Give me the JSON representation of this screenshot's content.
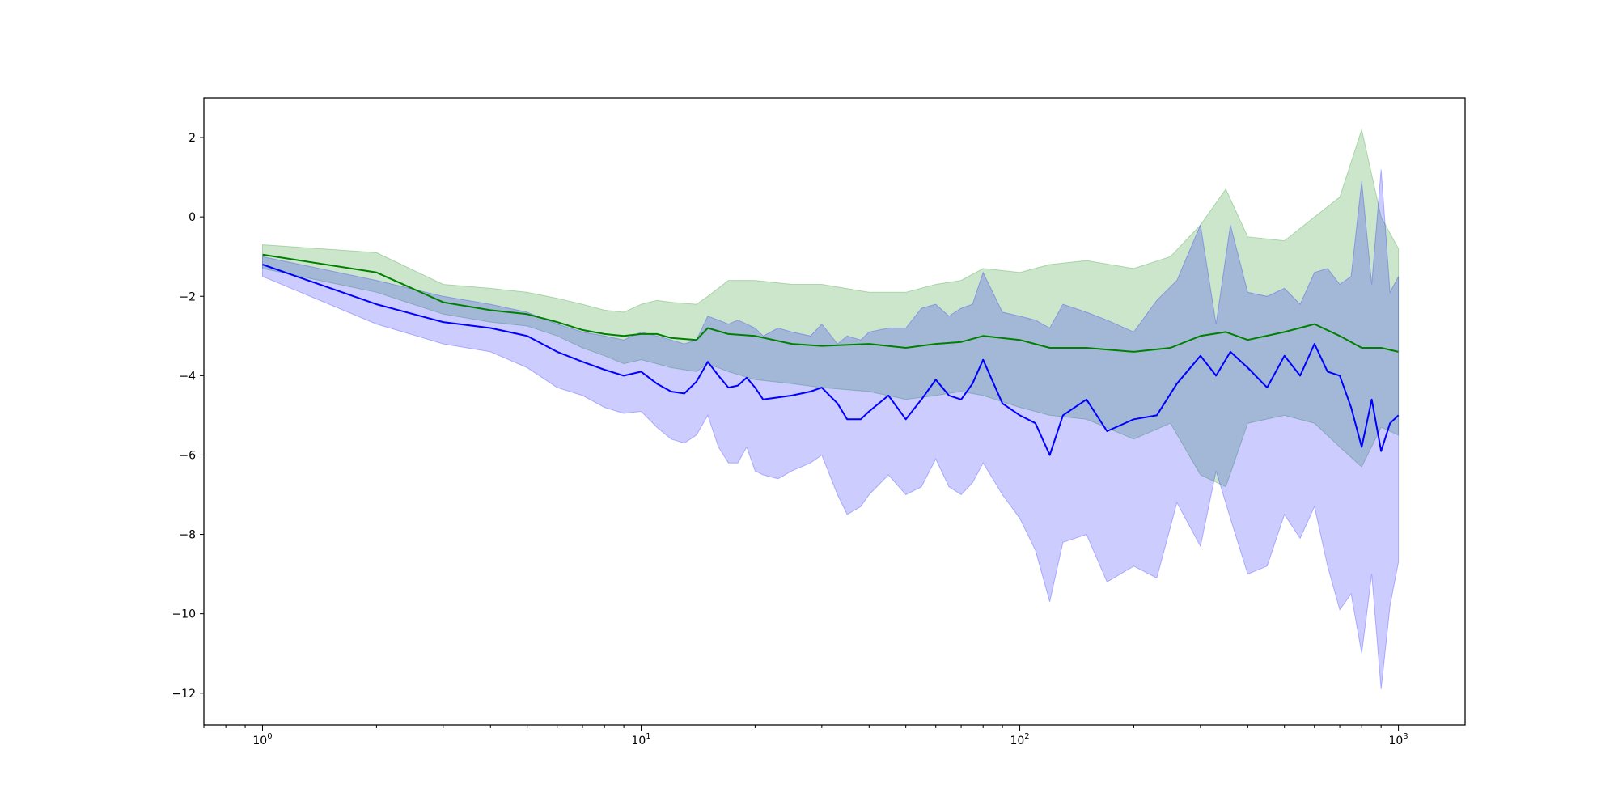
{
  "chart_data": {
    "type": "line",
    "title": "",
    "xlabel": "",
    "ylabel": "",
    "xscale": "log",
    "xlim": [
      0.7,
      1500
    ],
    "ylim": [
      -12.8,
      3.0
    ],
    "grid": false,
    "legend": "none",
    "x_ticks": [
      {
        "value": 1,
        "base": "10",
        "exp": "0"
      },
      {
        "value": 10,
        "base": "10",
        "exp": "1"
      },
      {
        "value": 100,
        "base": "10",
        "exp": "2"
      },
      {
        "value": 1000,
        "base": "10",
        "exp": "3"
      }
    ],
    "y_ticks": [
      {
        "value": 2,
        "label": "2"
      },
      {
        "value": 0,
        "label": "0"
      },
      {
        "value": -2,
        "label": "−2"
      },
      {
        "value": -4,
        "label": "−4"
      },
      {
        "value": -6,
        "label": "−6"
      },
      {
        "value": -8,
        "label": "−8"
      },
      {
        "value": -10,
        "label": "−10"
      },
      {
        "value": -12,
        "label": "−12"
      }
    ],
    "series": [
      {
        "color": "#008000",
        "band_alpha": 0.2,
        "x": [
          1,
          2,
          3,
          4,
          5,
          6,
          7,
          8,
          9,
          10,
          11,
          12,
          14,
          15,
          17,
          20,
          25,
          30,
          40,
          50,
          60,
          70,
          80,
          100,
          120,
          150,
          200,
          250,
          300,
          350,
          400,
          500,
          600,
          700,
          800,
          900,
          1000
        ],
        "mean": [
          -0.95,
          -1.4,
          -2.15,
          -2.35,
          -2.45,
          -2.65,
          -2.85,
          -2.95,
          -3.0,
          -2.95,
          -2.95,
          -3.05,
          -3.1,
          -2.8,
          -2.95,
          -3.0,
          -3.2,
          -3.25,
          -3.2,
          -3.3,
          -3.2,
          -3.15,
          -3.0,
          -3.1,
          -3.3,
          -3.3,
          -3.4,
          -3.3,
          -3.0,
          -2.9,
          -3.1,
          -2.9,
          -2.7,
          -3.0,
          -3.3,
          -3.3,
          -3.4
        ],
        "upper": [
          -0.7,
          -0.9,
          -1.7,
          -1.8,
          -1.9,
          -2.05,
          -2.2,
          -2.35,
          -2.4,
          -2.2,
          -2.1,
          -2.15,
          -2.2,
          -2.0,
          -1.6,
          -1.6,
          -1.7,
          -1.7,
          -1.9,
          -1.9,
          -1.7,
          -1.6,
          -1.3,
          -1.4,
          -1.2,
          -1.1,
          -1.3,
          -1.0,
          -0.2,
          0.7,
          -0.5,
          -0.6,
          0.0,
          0.5,
          2.2,
          0.0,
          -0.8
        ],
        "lower": [
          -1.3,
          -1.9,
          -2.45,
          -2.65,
          -2.75,
          -3.0,
          -3.3,
          -3.5,
          -3.7,
          -3.6,
          -3.7,
          -3.8,
          -3.9,
          -3.7,
          -3.9,
          -4.1,
          -4.2,
          -4.3,
          -4.4,
          -4.6,
          -4.5,
          -4.4,
          -4.5,
          -4.8,
          -5.0,
          -5.1,
          -5.6,
          -5.2,
          -6.5,
          -6.8,
          -5.2,
          -5.0,
          -5.2,
          -5.8,
          -6.3,
          -5.3,
          -5.5
        ]
      },
      {
        "color": "#0000ff",
        "band_alpha": 0.2,
        "x": [
          1,
          2,
          3,
          4,
          5,
          6,
          7,
          8,
          9,
          10,
          11,
          12,
          13,
          14,
          15,
          16,
          17,
          18,
          19,
          20,
          21,
          23,
          25,
          28,
          30,
          33,
          35,
          38,
          40,
          45,
          50,
          55,
          60,
          65,
          70,
          75,
          80,
          90,
          100,
          110,
          120,
          130,
          150,
          170,
          200,
          230,
          260,
          300,
          330,
          360,
          400,
          450,
          500,
          550,
          600,
          650,
          700,
          750,
          800,
          850,
          900,
          950,
          1000
        ],
        "mean": [
          -1.2,
          -2.2,
          -2.65,
          -2.8,
          -3.0,
          -3.4,
          -3.65,
          -3.85,
          -4.0,
          -3.9,
          -4.2,
          -4.4,
          -4.45,
          -4.15,
          -3.65,
          -4.0,
          -4.3,
          -4.25,
          -4.05,
          -4.3,
          -4.6,
          -4.55,
          -4.5,
          -4.4,
          -4.3,
          -4.7,
          -5.1,
          -5.1,
          -4.9,
          -4.5,
          -5.1,
          -4.6,
          -4.1,
          -4.5,
          -4.6,
          -4.2,
          -3.6,
          -4.7,
          -5.0,
          -5.2,
          -6.0,
          -5.0,
          -4.6,
          -5.4,
          -5.1,
          -5.0,
          -4.2,
          -3.5,
          -4.0,
          -3.4,
          -3.8,
          -4.3,
          -3.5,
          -4.0,
          -3.2,
          -3.9,
          -4.0,
          -4.8,
          -5.8,
          -4.6,
          -5.9,
          -5.2,
          -5.0
        ],
        "upper": [
          -1.0,
          -1.6,
          -2.0,
          -2.2,
          -2.4,
          -2.7,
          -2.9,
          -3.0,
          -3.1,
          -2.9,
          -3.0,
          -3.1,
          -3.2,
          -3.1,
          -2.5,
          -2.6,
          -2.7,
          -2.6,
          -2.7,
          -2.8,
          -3.0,
          -2.8,
          -2.9,
          -3.0,
          -2.7,
          -3.2,
          -3.0,
          -3.1,
          -2.9,
          -2.8,
          -2.8,
          -2.3,
          -2.2,
          -2.5,
          -2.3,
          -2.2,
          -1.4,
          -2.4,
          -2.5,
          -2.6,
          -2.8,
          -2.2,
          -2.4,
          -2.6,
          -2.9,
          -2.1,
          -1.6,
          -0.2,
          -2.7,
          -0.2,
          -1.9,
          -2.0,
          -1.8,
          -2.2,
          -1.4,
          -1.3,
          -1.7,
          -1.5,
          0.9,
          -1.7,
          1.2,
          -1.9,
          -1.5
        ],
        "lower": [
          -1.5,
          -2.7,
          -3.2,
          -3.4,
          -3.8,
          -4.3,
          -4.5,
          -4.8,
          -4.95,
          -4.9,
          -5.3,
          -5.6,
          -5.7,
          -5.5,
          -5.0,
          -5.8,
          -6.2,
          -6.2,
          -5.8,
          -6.4,
          -6.5,
          -6.6,
          -6.4,
          -6.2,
          -6.0,
          -7.0,
          -7.5,
          -7.3,
          -7.0,
          -6.5,
          -7.0,
          -6.8,
          -6.1,
          -6.8,
          -7.0,
          -6.7,
          -6.2,
          -7.0,
          -7.6,
          -8.4,
          -9.7,
          -8.2,
          -8.0,
          -9.2,
          -8.8,
          -9.1,
          -7.2,
          -8.3,
          -6.4,
          -7.6,
          -9.0,
          -8.8,
          -7.5,
          -8.1,
          -7.3,
          -8.8,
          -9.9,
          -9.5,
          -11.0,
          -9.0,
          -11.9,
          -9.8,
          -8.7
        ]
      }
    ]
  }
}
